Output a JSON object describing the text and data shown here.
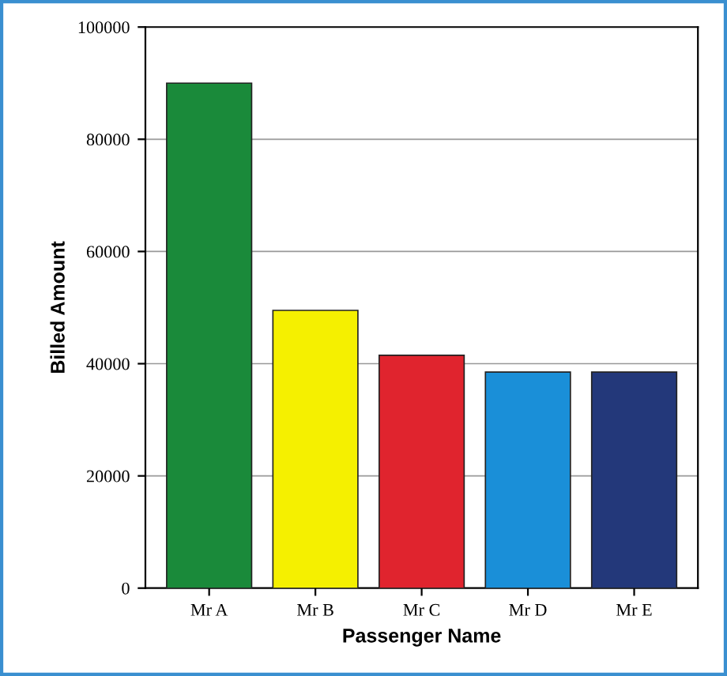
{
  "chart_data": {
    "type": "bar",
    "xlabel": "Passenger Name",
    "ylabel": "Billed Amount",
    "categories": [
      "Mr A",
      "Mr B",
      "Mr C",
      "Mr D",
      "Mr E"
    ],
    "values": [
      90000,
      49500,
      41500,
      38500,
      38500
    ],
    "colors": [
      "#1a8a3a",
      "#f5f000",
      "#e0242e",
      "#1a8fd8",
      "#23387a"
    ],
    "ylim": [
      0,
      100000
    ],
    "yticks": [
      0,
      20000,
      40000,
      60000,
      80000,
      100000
    ],
    "grid": "y",
    "legend": false
  }
}
